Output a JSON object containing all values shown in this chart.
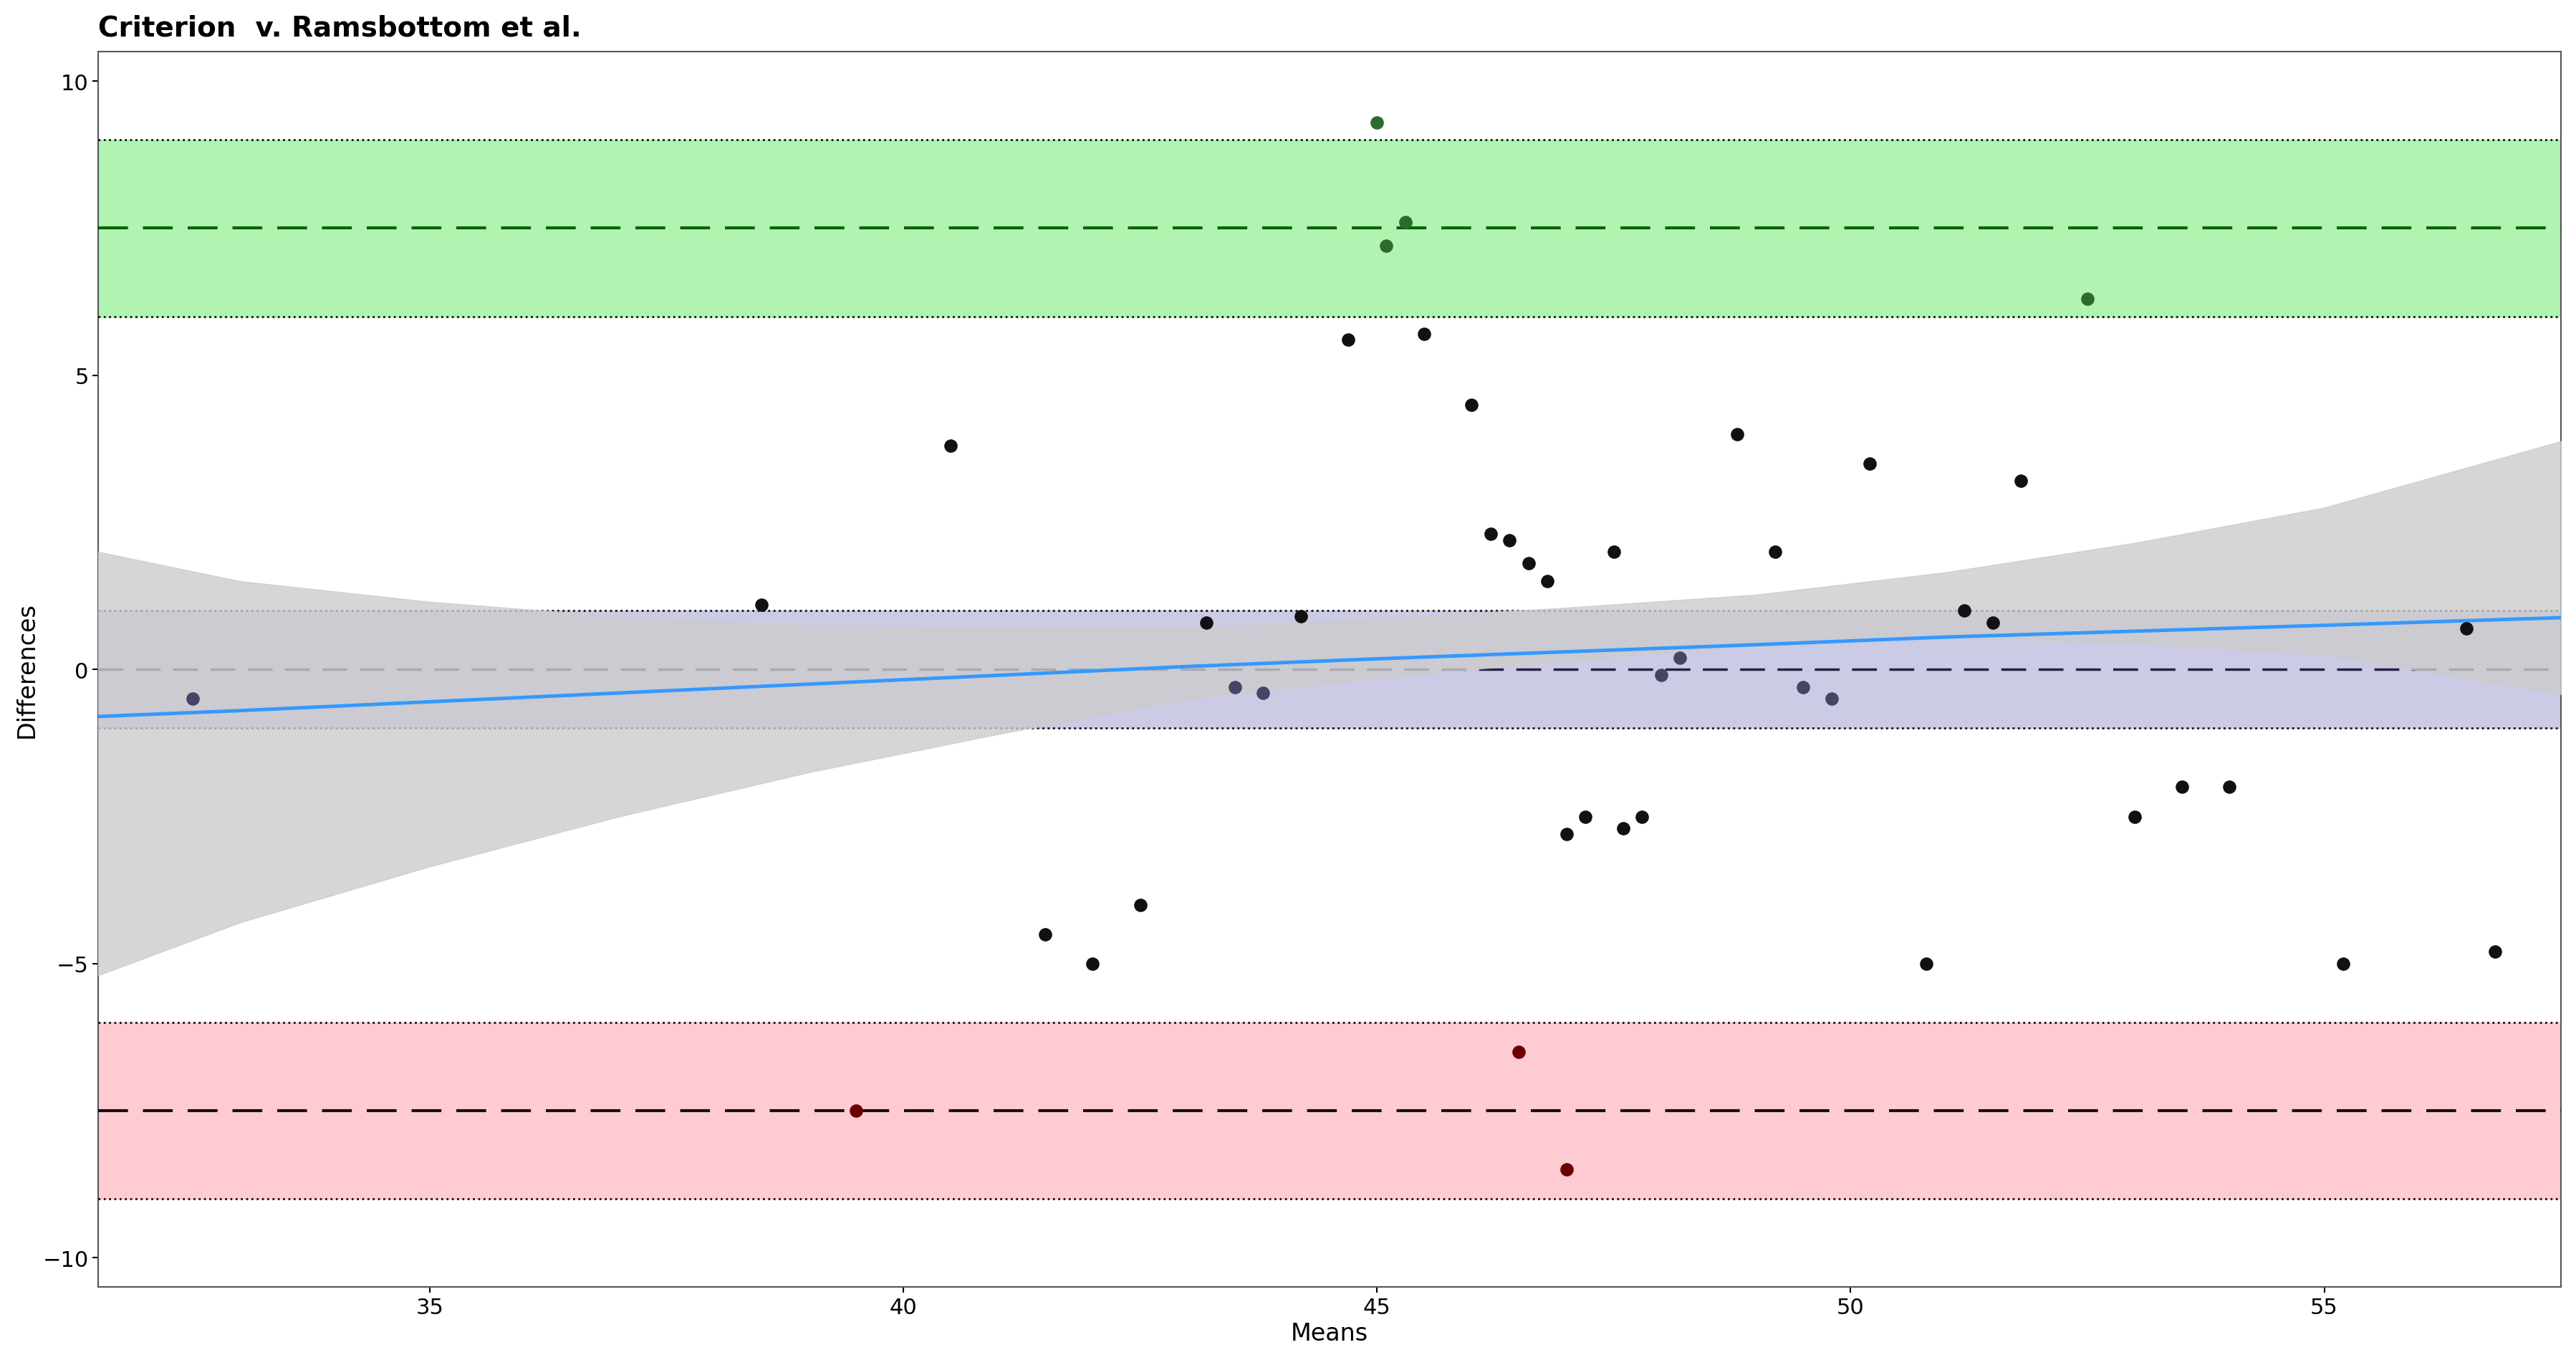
{
  "title": "Criterion  v. Ramsbottom et al.",
  "xlabel": "Means",
  "ylabel": "Differences",
  "xlim": [
    31.5,
    57.5
  ],
  "ylim": [
    -10.5,
    10.5
  ],
  "yticks": [
    -10,
    -5,
    0,
    5,
    10
  ],
  "xticks": [
    35,
    40,
    45,
    50,
    55
  ],
  "upper_loa_mean": 7.5,
  "upper_loa_upper": 9.0,
  "upper_loa_lower": 6.0,
  "mean_diff": 0.0,
  "mean_diff_upper": 1.0,
  "mean_diff_lower": -1.0,
  "lower_loa_mean": -7.5,
  "lower_loa_upper": -6.0,
  "lower_loa_lower": -9.0,
  "green_fill": "#90EE90",
  "green_dashed_color": "#006400",
  "red_fill": "#FFB6C1",
  "red_dashed_color": "#8B0000",
  "blue_fill": "#9999CC",
  "blue_line_color": "#3399FF",
  "mean_dashed_color": "#222244",
  "dotted_line_color": "#111111",
  "regression_ci_color": "#CCCCCC",
  "points": [
    [
      32.5,
      -0.5
    ],
    [
      38.5,
      1.1
    ],
    [
      39.5,
      -7.5
    ],
    [
      40.5,
      3.8
    ],
    [
      41.5,
      -4.5
    ],
    [
      42.0,
      -5.0
    ],
    [
      42.5,
      -4.0
    ],
    [
      43.2,
      0.8
    ],
    [
      43.5,
      -0.3
    ],
    [
      43.8,
      -0.4
    ],
    [
      44.2,
      0.9
    ],
    [
      44.7,
      5.6
    ],
    [
      45.0,
      9.3
    ],
    [
      45.1,
      7.2
    ],
    [
      45.3,
      7.6
    ],
    [
      45.5,
      5.7
    ],
    [
      46.0,
      4.5
    ],
    [
      46.2,
      2.3
    ],
    [
      46.4,
      2.2
    ],
    [
      46.6,
      1.8
    ],
    [
      46.8,
      1.5
    ],
    [
      47.0,
      -2.8
    ],
    [
      47.2,
      -2.5
    ],
    [
      47.5,
      2.0
    ],
    [
      47.6,
      -2.7
    ],
    [
      47.8,
      -2.5
    ],
    [
      48.0,
      -0.1
    ],
    [
      48.2,
      0.2
    ],
    [
      46.5,
      -6.5
    ],
    [
      47.0,
      -8.5
    ],
    [
      48.8,
      4.0
    ],
    [
      49.2,
      2.0
    ],
    [
      49.5,
      -0.3
    ],
    [
      49.8,
      -0.5
    ],
    [
      50.2,
      3.5
    ],
    [
      50.8,
      -5.0
    ],
    [
      51.2,
      1.0
    ],
    [
      51.5,
      0.8
    ],
    [
      51.8,
      3.2
    ],
    [
      52.5,
      6.3
    ],
    [
      53.0,
      -2.5
    ],
    [
      53.5,
      -2.0
    ],
    [
      54.0,
      -2.0
    ],
    [
      55.2,
      -5.0
    ],
    [
      56.5,
      0.7
    ],
    [
      56.8,
      -4.8
    ]
  ],
  "regression_x": [
    31.5,
    33.0,
    35.0,
    37.0,
    39.0,
    41.0,
    43.0,
    45.0,
    47.0,
    49.0,
    51.0,
    53.0,
    55.0,
    57.5
  ],
  "regression_y": [
    -0.8,
    -0.7,
    -0.55,
    -0.4,
    -0.25,
    -0.1,
    0.05,
    0.18,
    0.3,
    0.42,
    0.55,
    0.65,
    0.75,
    0.88
  ],
  "regression_upper": [
    2.8,
    2.2,
    1.7,
    1.3,
    1.0,
    0.8,
    0.65,
    0.68,
    0.75,
    0.85,
    1.1,
    1.5,
    2.0,
    3.0
  ],
  "regression_lower": [
    -4.4,
    -3.6,
    -2.8,
    -2.1,
    -1.5,
    -1.0,
    -0.55,
    -0.33,
    -0.15,
    -0.02,
    0.0,
    -0.2,
    -0.5,
    -1.3
  ],
  "background_color": "#FFFFFF",
  "title_fontsize": 28,
  "axis_label_fontsize": 24,
  "tick_fontsize": 22
}
